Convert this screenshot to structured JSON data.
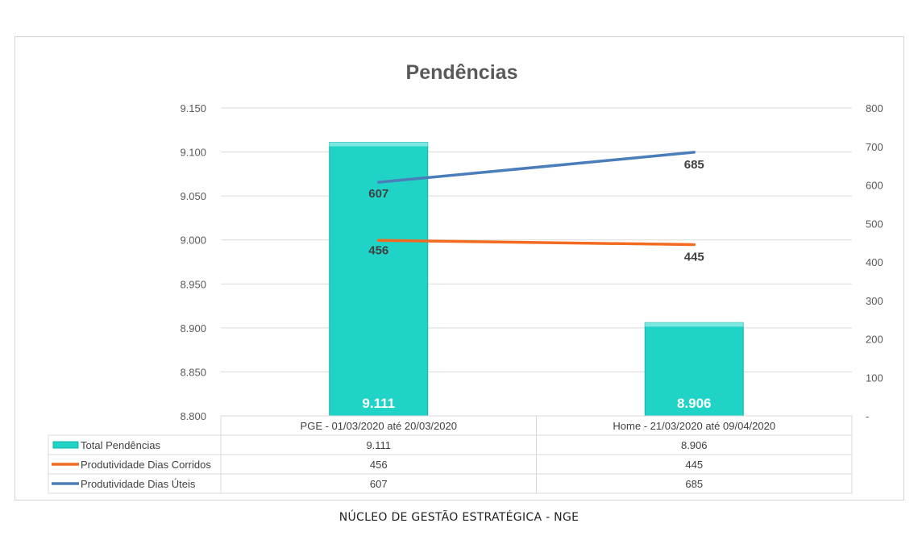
{
  "chart_data": {
    "type": "bar",
    "title": "Pendências",
    "categories": [
      "PGE - 01/03/2020 até 20/03/2020",
      "Home - 21/03/2020 até 09/04/2020"
    ],
    "ylim": [
      8800,
      9150
    ],
    "y_ticks": [
      "8.800",
      "8.850",
      "8.900",
      "8.950",
      "9.000",
      "9.050",
      "9.100",
      "9.150"
    ],
    "y2lim": [
      0,
      800
    ],
    "y2_ticks": [
      "-",
      "100",
      "200",
      "300",
      "400",
      "500",
      "600",
      "700",
      "800"
    ],
    "grid": true,
    "legend": "data-table",
    "series": [
      {
        "name": "Total Pendências",
        "type": "bar",
        "axis": "left",
        "color": "#1fd3c6",
        "values": [
          9111,
          8906
        ],
        "labels": [
          "9.111",
          "8.906"
        ]
      },
      {
        "name": "Produtividade Dias Corridos",
        "type": "line",
        "axis": "right",
        "color": "#f26b21",
        "values": [
          456,
          445
        ],
        "labels": [
          "456",
          "445"
        ]
      },
      {
        "name": "Produtividade Dias Úteis",
        "type": "line",
        "axis": "right",
        "color": "#4a7ebb",
        "values": [
          607,
          685
        ],
        "labels": [
          "607",
          "685"
        ]
      }
    ]
  },
  "footer": "NÚCLEO DE GESTÃO ESTRATÉGICA - NGE"
}
